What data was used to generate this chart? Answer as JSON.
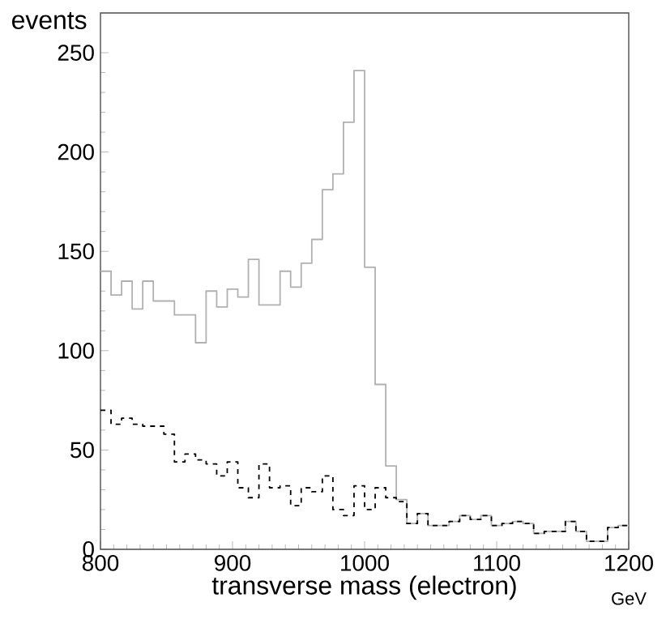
{
  "chart_data": {
    "type": "histogram",
    "xlabel": "transverse mass (electron)",
    "ylabel": "events",
    "annotations": [
      "GeV"
    ],
    "bins": [
      800,
      808,
      816,
      824,
      832,
      840,
      848,
      856,
      864,
      872,
      880,
      888,
      896,
      904,
      912,
      920,
      928,
      936,
      944,
      952,
      960,
      968,
      976,
      984,
      992,
      1000,
      1008,
      1016,
      1024,
      1032,
      1040,
      1048,
      1056,
      1064,
      1072,
      1080,
      1088,
      1096,
      1104,
      1112,
      1120,
      1128,
      1136,
      1144,
      1152,
      1160,
      1168,
      1176,
      1184,
      1192,
      1200
    ],
    "series": [
      {
        "color": "#b0b0b0",
        "line_style": "solid",
        "values": [
          140,
          128,
          135,
          121,
          135,
          125,
          125,
          118,
          118,
          104,
          130,
          122,
          131,
          127,
          146,
          123,
          123,
          140,
          132,
          144,
          156,
          181,
          189,
          215,
          241,
          142,
          83,
          42,
          25,
          13,
          18,
          12,
          12,
          14,
          17,
          15,
          17,
          12,
          13,
          14,
          13,
          8,
          9,
          9,
          14,
          9,
          4,
          4,
          11,
          12
        ]
      },
      {
        "color": "#000000",
        "line_style": "dashed",
        "values": [
          70,
          63,
          66,
          63,
          62,
          62,
          58,
          44,
          48,
          45,
          43,
          37,
          44,
          31,
          26,
          43,
          31,
          32,
          22,
          31,
          29,
          37,
          20,
          17,
          32,
          20,
          31,
          26,
          24,
          13,
          18,
          12,
          12,
          14,
          17,
          15,
          17,
          12,
          13,
          14,
          13,
          8,
          9,
          9,
          14,
          9,
          4,
          4,
          11,
          12
        ]
      }
    ],
    "xlim": [
      800,
      1200
    ],
    "ylim": [
      0,
      270
    ],
    "xticks": [
      800,
      900,
      1000,
      1100,
      1200
    ],
    "yticks": [
      0,
      50,
      100,
      150,
      200,
      250
    ],
    "grid": false
  }
}
